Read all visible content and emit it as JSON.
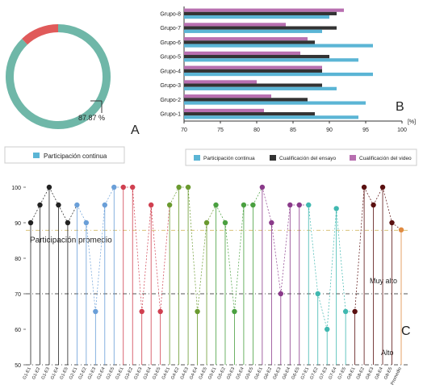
{
  "panels": {
    "A": "A",
    "B": "B",
    "C": "C"
  },
  "colors": {
    "participacion": "#5bb5d5",
    "ensayo": "#333333",
    "video": "#b86fb0",
    "donut_main": "#6fb7a8",
    "donut_rest": "#e05a5a",
    "promedio_line": "#d9c27a",
    "ref_line": "#555555"
  },
  "chart_data": [
    {
      "type": "pie",
      "panel": "A",
      "donut": true,
      "slices": [
        {
          "value": 87.87,
          "color": "#6fb7a8"
        },
        {
          "value": 12.13,
          "color": "#e05a5a"
        }
      ],
      "annotation": "87.87 %",
      "legend": [
        {
          "label": "Participación continua",
          "color": "#5bb5d5"
        }
      ]
    },
    {
      "type": "bar",
      "panel": "B",
      "orientation": "horizontal",
      "categories": [
        "Grupo-1",
        "Grupo-2",
        "Grupo-3",
        "Grupo-4",
        "Grupo-5",
        "Grupo-6",
        "Grupo-7",
        "Grupo-8"
      ],
      "series": [
        {
          "name": "Participación continua",
          "color": "#5bb5d5",
          "values": [
            94,
            95,
            91,
            96,
            94,
            96,
            89,
            90
          ]
        },
        {
          "name": "Cualificación del ensayo",
          "color": "#333333",
          "values": [
            88,
            87,
            89,
            89,
            90,
            88,
            91,
            91
          ]
        },
        {
          "name": "Cualificación del video",
          "color": "#b86fb0",
          "values": [
            81,
            82,
            80,
            89,
            86,
            87,
            84,
            92
          ]
        }
      ],
      "xlim": [
        70,
        100
      ],
      "xticks": [
        "70",
        "75",
        "80",
        "85",
        "90",
        "95",
        "100"
      ],
      "xunit": "[%]",
      "legend_position": "bottom"
    },
    {
      "type": "scatter",
      "panel": "C",
      "style": "lollipop",
      "ylim": [
        50,
        100
      ],
      "yticks": [
        "100",
        "90",
        "80",
        "70",
        "60",
        "50"
      ],
      "categories": [
        "G1-E1",
        "G1-E2",
        "G1-E3",
        "G1-E4",
        "G1-E5",
        "G2-E1",
        "G2-E2",
        "G2-E3",
        "G2-E4",
        "G2-E5",
        "G3-E1",
        "G3-E2",
        "G3-E3",
        "G3-E4",
        "G3-E5",
        "G4-E1",
        "G4-E2",
        "G4-E3",
        "G4-E4",
        "G4-E5",
        "G5-E1",
        "G5-E2",
        "G5-E3",
        "G5-E4",
        "G5-E5",
        "G6-E1",
        "G6-E2",
        "G6-E3",
        "G6-E4",
        "G6-E5",
        "G7-E1",
        "G7-E2",
        "G7-E3",
        "G7-E4",
        "G7-E5",
        "G8-E1",
        "G8-E2",
        "G8-E3",
        "G8-E4",
        "G8-E5",
        "Promedio"
      ],
      "values": [
        90,
        95,
        100,
        95,
        90,
        95,
        90,
        65,
        95,
        100,
        100,
        100,
        65,
        95,
        65,
        95,
        100,
        100,
        65,
        90,
        95,
        90,
        65,
        95,
        95,
        100,
        90,
        70,
        95,
        95,
        95,
        70,
        60,
        94,
        65,
        65,
        100,
        95,
        100,
        90,
        88
      ],
      "colors": [
        "#222222",
        "#222222",
        "#222222",
        "#222222",
        "#222222",
        "#6a9fd8",
        "#6a9fd8",
        "#6a9fd8",
        "#6a9fd8",
        "#6a9fd8",
        "#d04050",
        "#d04050",
        "#d04050",
        "#d04050",
        "#d04050",
        "#6a9a30",
        "#6a9a30",
        "#6a9a30",
        "#6a9a30",
        "#6a9a30",
        "#4aa040",
        "#4aa040",
        "#4aa040",
        "#4aa040",
        "#4aa040",
        "#8a3a8a",
        "#8a3a8a",
        "#8a3a8a",
        "#8a3a8a",
        "#8a3a8a",
        "#40b8b0",
        "#40b8b0",
        "#40b8b0",
        "#40b8b0",
        "#40b8b0",
        "#5a1010",
        "#5a1010",
        "#5a1010",
        "#5a1010",
        "#5a1010",
        "#e08a40"
      ],
      "reference_lines": [
        {
          "value": 87.87,
          "label": "Participación promedio",
          "color": "#d9c27a"
        },
        {
          "value": 70,
          "label": "Muy alto",
          "color": "#555555"
        },
        {
          "value": 50,
          "label": "Alto",
          "color": "#555555"
        }
      ]
    }
  ]
}
